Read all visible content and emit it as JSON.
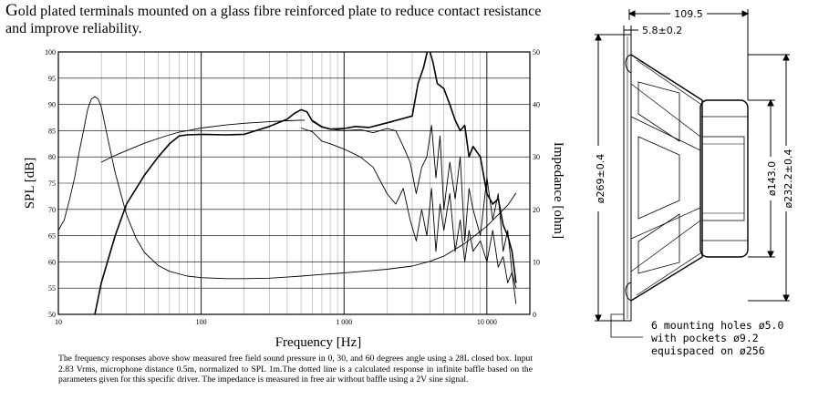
{
  "intro": {
    "first_letter": "G",
    "rest": "old plated terminals mounted on a glass fibre reinforced plate to reduce contact resistance and improve reliability."
  },
  "chart_data": {
    "type": "line",
    "xscale": "log",
    "xlim": [
      10,
      20000
    ],
    "ylim": [
      50,
      100
    ],
    "y2lim": [
      0,
      50
    ],
    "xlabel": "Frequency [Hz]",
    "ylabel": "SPL [dB]",
    "y2label": "Impedance [ohm]",
    "x_ticks": [
      {
        "v": 10,
        "label": "10"
      },
      {
        "v": 100,
        "label": "100"
      },
      {
        "v": 1000,
        "label": "1 000"
      },
      {
        "v": 10000,
        "label": "10 000"
      }
    ],
    "y_ticks": [
      50,
      55,
      60,
      65,
      70,
      75,
      80,
      85,
      90,
      95,
      100
    ],
    "y2_ticks": [
      0,
      10,
      20,
      30,
      40,
      50
    ],
    "series": [
      {
        "key": "spl0",
        "axis": "left",
        "width": 1.6,
        "x": [
          18,
          20,
          25,
          30,
          40,
          50,
          60,
          70,
          80,
          100,
          150,
          200,
          300,
          400,
          450,
          500,
          550,
          600,
          700,
          800,
          1000,
          1200,
          1500,
          2000,
          2500,
          3000,
          3300,
          3600,
          3900,
          4200,
          4500,
          5000,
          5500,
          6000,
          6500,
          7000,
          7500,
          8000,
          9000,
          10000,
          11000,
          12000,
          13000,
          14000,
          15000,
          16000
        ],
        "y": [
          50,
          56,
          65,
          71,
          76.5,
          80,
          82.5,
          84,
          84.2,
          84.3,
          84.2,
          84.3,
          85.8,
          87.2,
          88.3,
          89,
          88.6,
          86.8,
          85.7,
          85.3,
          85.4,
          85.8,
          85.6,
          86.5,
          87.2,
          87.8,
          94,
          97,
          101,
          98,
          94,
          93,
          90,
          87,
          85,
          86,
          80,
          82,
          80,
          73,
          71,
          72,
          67,
          65,
          62,
          56
        ]
      },
      {
        "key": "spl30",
        "axis": "left",
        "width": 0.9,
        "x": [
          600,
          700,
          800,
          1000,
          1300,
          1600,
          2000,
          2300,
          2600,
          2900,
          3200,
          3500,
          3800,
          4100,
          4400,
          4700,
          5000,
          5500,
          6000,
          6500,
          7000,
          7500,
          8000,
          9000,
          10000,
          11000,
          12000,
          13000,
          14000,
          15000,
          16000
        ],
        "y": [
          87,
          85.8,
          85.3,
          85.0,
          85.2,
          84.6,
          85.4,
          85.0,
          82.0,
          79.0,
          73.0,
          78.0,
          80.0,
          86.0,
          76.0,
          84.0,
          70.0,
          79.0,
          72.0,
          80.0,
          64.0,
          74.0,
          70.0,
          65.0,
          76.0,
          68.0,
          73.0,
          62.0,
          66.0,
          58.0,
          55.0
        ]
      },
      {
        "key": "spl60",
        "axis": "left",
        "width": 0.9,
        "x": [
          500,
          600,
          700,
          800,
          1000,
          1300,
          1600,
          2000,
          2300,
          2600,
          2900,
          3200,
          3500,
          3800,
          4100,
          4400,
          4700,
          5000,
          5500,
          6000,
          6500,
          7000,
          7500,
          8000,
          9000,
          10000,
          11000,
          12000,
          13000,
          14000,
          15000,
          16000
        ],
        "y": [
          85.5,
          84.8,
          83.0,
          82.5,
          81.5,
          80.0,
          78.0,
          73.0,
          71.0,
          74.0,
          68.0,
          64.0,
          70.0,
          65.0,
          74.0,
          62.0,
          71.0,
          66.0,
          73.0,
          62.0,
          68.0,
          60.0,
          66.0,
          62.0,
          64.0,
          60.0,
          66.0,
          59.0,
          61.0,
          56.0,
          58.0,
          52.0
        ]
      },
      {
        "key": "infinite",
        "axis": "left",
        "width": 0.9,
        "x": [
          20,
          25,
          30,
          40,
          50,
          60,
          70,
          80,
          100,
          150,
          200,
          300,
          400,
          500,
          530
        ],
        "y": [
          79,
          80.3,
          81.2,
          82.6,
          83.5,
          84.2,
          84.7,
          85,
          85.5,
          86.1,
          86.4,
          86.7,
          86.9,
          87,
          87
        ]
      },
      {
        "key": "impedance",
        "axis": "right",
        "width": 0.9,
        "x": [
          10,
          11,
          12,
          13,
          14,
          15,
          16,
          17,
          18,
          19,
          20,
          22,
          25,
          30,
          35,
          40,
          50,
          60,
          80,
          100,
          150,
          200,
          300,
          400,
          500,
          700,
          1000,
          1500,
          2000,
          3000,
          4000,
          5000,
          7000,
          10000,
          14000,
          16000
        ],
        "y": [
          16,
          18,
          22,
          26,
          31,
          35,
          39,
          41,
          41.5,
          41,
          39.5,
          34,
          27,
          19,
          14.5,
          11.8,
          9.3,
          8.2,
          7.3,
          7.0,
          6.8,
          6.8,
          6.9,
          7.1,
          7.3,
          7.6,
          7.9,
          8.3,
          8.6,
          9.2,
          10.1,
          11.1,
          13.5,
          16.8,
          20.8,
          23.1
        ]
      }
    ]
  },
  "caption": "The frequency responses above show measured free field sound pressure in 0, 30, and 60 degrees angle using a 28L closed box. Input 2.83 Vrms, microphone distance 0.5m, normalized to SPL 1m.The dotted line is a calculated response in infinite baffle based on the parameters given for this specific driver. The impedance is measured in free air without baffle using a 2V sine signal.",
  "drawing": {
    "dim_depth": "109.5",
    "dim_flange": "5.8±0.2",
    "dim_outer": "ø269±0.4",
    "dim_magnet": "ø143.0",
    "dim_cutout": "ø232.2±0.4",
    "note_lines": [
      "6 mounting holes ø5.0",
      "with pockets ø9.2",
      "equispaced on ø256"
    ]
  }
}
